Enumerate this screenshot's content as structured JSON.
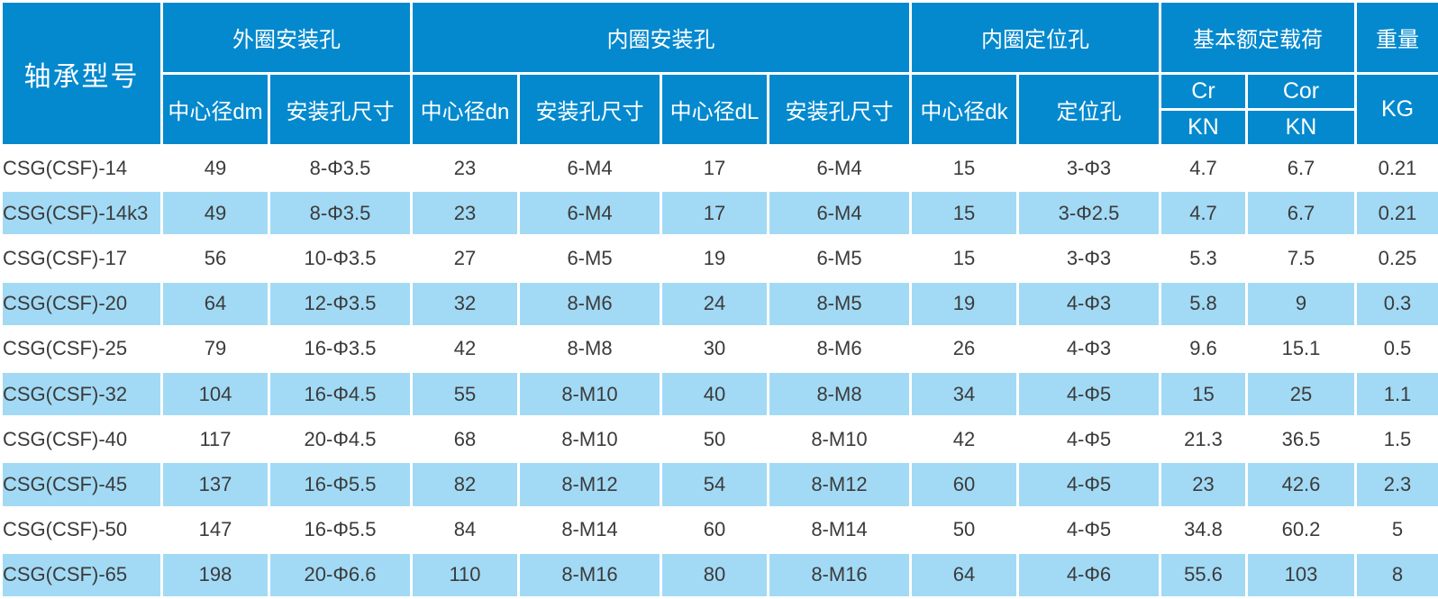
{
  "colors": {
    "header_blue": "#0489ce",
    "row_highlight": "#a2daf5",
    "row_white": "#ffffff",
    "border_white": "#ffffff",
    "text_dark": "#3b3b3b",
    "header_text": "#ffffff"
  },
  "table": {
    "header": {
      "model": "轴承型号",
      "groups": {
        "outer": "外圈安装孔",
        "inner": "内圈安装孔",
        "locating": "内圈定位孔",
        "load": "基本额定载荷",
        "weight": "重量"
      },
      "sub": {
        "dm": "中心径dm",
        "hole_size_outer": "安装孔尺寸",
        "dn": "中心径dn",
        "hole_size_inner1": "安装孔尺寸",
        "dL": "中心径dL",
        "hole_size_inner2": "安装孔尺寸",
        "dk": "中心径dk",
        "locating_hole": "定位孔",
        "cr": "Cr",
        "cor": "Cor",
        "kn_cr": "KN",
        "kn_cor": "KN",
        "kg": "KG"
      }
    },
    "rows": [
      {
        "model": "CSG(CSF)-14",
        "highlight": false,
        "values": [
          "49",
          "8-Φ3.5",
          "23",
          "6-M4",
          "17",
          "6-M4",
          "15",
          "3-Φ3",
          "4.7",
          "6.7",
          "0.21"
        ]
      },
      {
        "model": "CSG(CSF)-14k3",
        "highlight": true,
        "values": [
          "49",
          "8-Φ3.5",
          "23",
          "6-M4",
          "17",
          "6-M4",
          "15",
          "3-Φ2.5",
          "4.7",
          "6.7",
          "0.21"
        ]
      },
      {
        "model": "CSG(CSF)-17",
        "highlight": false,
        "values": [
          "56",
          "10-Φ3.5",
          "27",
          "6-M5",
          "19",
          "6-M5",
          "15",
          "3-Φ3",
          "5.3",
          "7.5",
          "0.25"
        ]
      },
      {
        "model": "CSG(CSF)-20",
        "highlight": true,
        "values": [
          "64",
          "12-Φ3.5",
          "32",
          "8-M6",
          "24",
          "8-M5",
          "19",
          "4-Φ3",
          "5.8",
          "9",
          "0.3"
        ]
      },
      {
        "model": "CSG(CSF)-25",
        "highlight": false,
        "values": [
          "79",
          "16-Φ3.5",
          "42",
          "8-M8",
          "30",
          "8-M6",
          "26",
          "4-Φ3",
          "9.6",
          "15.1",
          "0.5"
        ]
      },
      {
        "model": "CSG(CSF)-32",
        "highlight": true,
        "values": [
          "104",
          "16-Φ4.5",
          "55",
          "8-M10",
          "40",
          "8-M8",
          "34",
          "4-Φ5",
          "15",
          "25",
          "1.1"
        ]
      },
      {
        "model": "CSG(CSF)-40",
        "highlight": false,
        "values": [
          "117",
          "20-Φ4.5",
          "68",
          "8-M10",
          "50",
          "8-M10",
          "42",
          "4-Φ5",
          "21.3",
          "36.5",
          "1.5"
        ]
      },
      {
        "model": "CSG(CSF)-45",
        "highlight": true,
        "values": [
          "137",
          "16-Φ5.5",
          "82",
          "8-M12",
          "54",
          "8-M12",
          "60",
          "4-Φ5",
          "23",
          "42.6",
          "2.3"
        ]
      },
      {
        "model": "CSG(CSF)-50",
        "highlight": false,
        "values": [
          "147",
          "16-Φ5.5",
          "84",
          "8-M14",
          "60",
          "8-M14",
          "50",
          "4-Φ5",
          "34.8",
          "60.2",
          "5"
        ]
      },
      {
        "model": "CSG(CSF)-65",
        "highlight": true,
        "values": [
          "198",
          "20-Φ6.6",
          "110",
          "8-M16",
          "80",
          "8-M16",
          "64",
          "4-Φ6",
          "55.6",
          "103",
          "8"
        ]
      }
    ]
  }
}
